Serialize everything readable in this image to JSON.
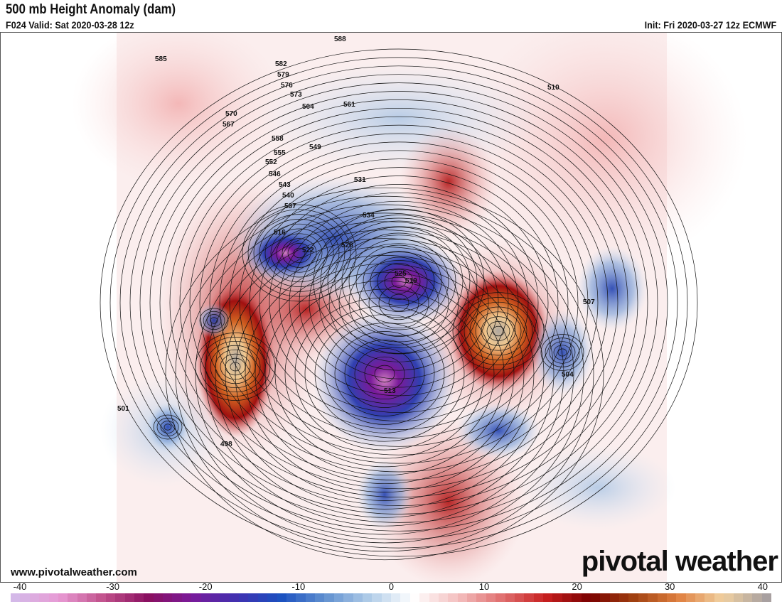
{
  "header": {
    "title": "500 mb Height Anomaly (dam)",
    "valid": "F024 Valid: Sat 2020-03-28 12z",
    "init": "Init: Fri 2020-03-27 12z ECMWF"
  },
  "footer": {
    "site": "www.pivotalweather.com",
    "logo": "pivotal weather"
  },
  "colorbar": {
    "min": -40,
    "max": 40,
    "ticks": [
      "-40",
      "-30",
      "-20",
      "-10",
      "0",
      "10",
      "20",
      "30",
      "40"
    ],
    "stops": [
      "#d4b8e8",
      "#e89ad4",
      "#c0508a",
      "#8a1060",
      "#7a1a9a",
      "#4030b0",
      "#1a50c0",
      "#6090d0",
      "#b0cce8",
      "#ffffff",
      "#f4c0c0",
      "#e07070",
      "#c82020",
      "#7a0000",
      "#a04010",
      "#e08040",
      "#f0d0a0",
      "#a8a0a0"
    ]
  },
  "contour_labels": [
    "588",
    "585",
    "582",
    "579",
    "576",
    "573",
    "570",
    "567",
    "564",
    "561",
    "558",
    "555",
    "552",
    "549",
    "546",
    "543",
    "540",
    "537",
    "534",
    "531",
    "528",
    "525",
    "522",
    "519",
    "516",
    "513",
    "510",
    "507",
    "504",
    "501",
    "498"
  ]
}
